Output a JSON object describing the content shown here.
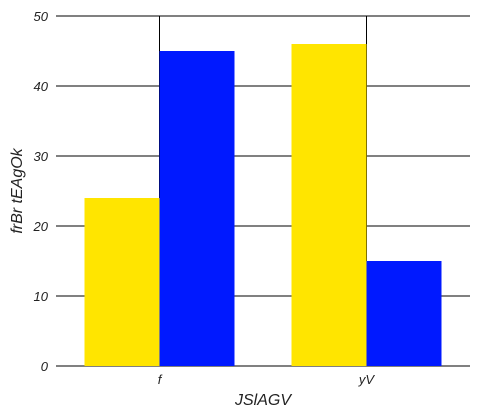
{
  "chart_data": {
    "type": "bar",
    "categories": [
      "f",
      "yV"
    ],
    "series": [
      {
        "values": [
          24,
          46
        ],
        "color": "#FFE500"
      },
      {
        "values": [
          45,
          15
        ],
        "color": "#0019FF"
      }
    ],
    "xlabel": "JSlAGV",
    "ylabel": "frBr tEAgOk",
    "ylim": [
      0,
      50
    ],
    "yticks": [
      0,
      10,
      20,
      30,
      40,
      50
    ],
    "grid": "horizontal and vertical",
    "legend": "none"
  }
}
